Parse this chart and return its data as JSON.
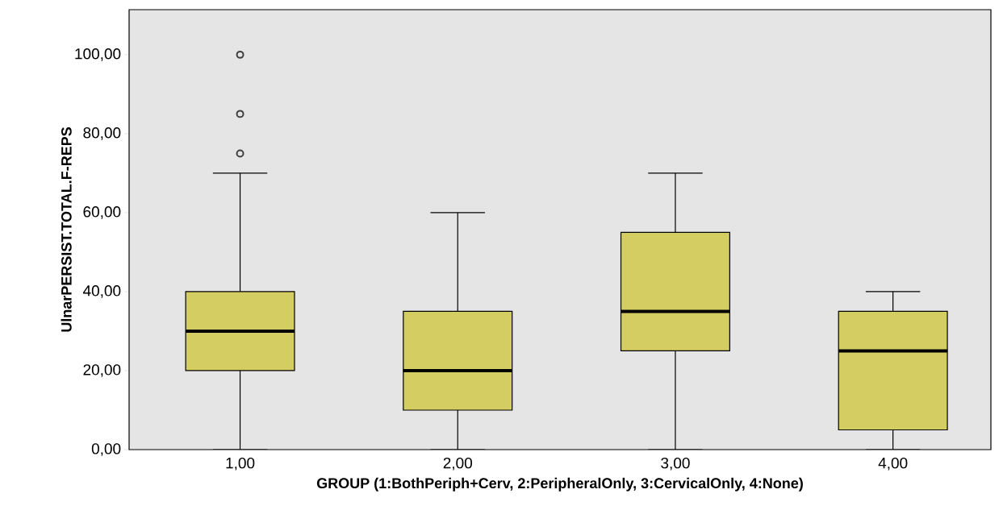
{
  "chart_data": {
    "type": "box",
    "xlabel": "GROUP (1:BothPeriph+Cerv, 2:PeripheralOnly, 3:CervicalOnly, 4:None)",
    "ylabel": "UlnarPERSIST.TOTAL.F-REPS",
    "categories": [
      "1,00",
      "2,00",
      "3,00",
      "4,00"
    ],
    "color": "#d4cd62",
    "boxes": [
      {
        "low": 0,
        "q1": 20,
        "median": 30,
        "q3": 40,
        "high": 70,
        "outliers": [
          75,
          85,
          100
        ]
      },
      {
        "low": 0,
        "q1": 10,
        "median": 20,
        "q3": 35,
        "high": 60
      },
      {
        "low": 0,
        "q1": 25,
        "median": 35,
        "q3": 55,
        "high": 70
      },
      {
        "low": 0,
        "q1": 5,
        "median": 25,
        "q3": 35,
        "high": 40
      }
    ],
    "ylim": [
      0,
      111.4
    ],
    "yticks": [
      {
        "value": 0,
        "label": "0,00"
      },
      {
        "value": 20,
        "label": "20,00"
      },
      {
        "value": 40,
        "label": "40,00"
      },
      {
        "value": 60,
        "label": "60,00"
      },
      {
        "value": 80,
        "label": "80,00"
      },
      {
        "value": 100,
        "label": "100,00"
      }
    ],
    "grid": false,
    "marker": "circle"
  }
}
